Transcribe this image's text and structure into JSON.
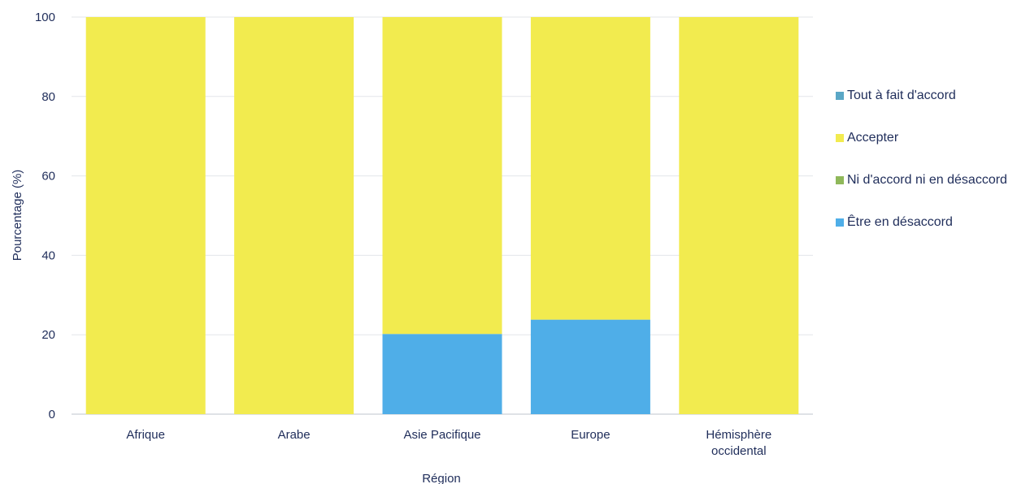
{
  "chart_data": {
    "type": "bar",
    "stacked": true,
    "title": "",
    "xlabel": "Région",
    "ylabel": "Pourcentage (%)",
    "ylim": [
      0,
      100
    ],
    "yticks": [
      0,
      20,
      40,
      60,
      80,
      100
    ],
    "grid": true,
    "legend_position": "right",
    "categories": [
      [
        "Afrique"
      ],
      [
        "Arabe"
      ],
      [
        "Asie Pacifique"
      ],
      [
        "Europe"
      ],
      [
        "Hémisphère",
        "occidental"
      ]
    ],
    "series": [
      {
        "name": "Être en désaccord",
        "color": "#4faee8",
        "values": [
          0,
          0,
          20.2,
          23.8,
          0
        ]
      },
      {
        "name": "Ni d'accord ni en désaccord",
        "color": "#8fb85a",
        "values": [
          0,
          0,
          0,
          0,
          0
        ]
      },
      {
        "name": "Accepter",
        "color": "#f2eb4f",
        "values": [
          100,
          100,
          79.8,
          76.2,
          100
        ]
      },
      {
        "name": "Tout à fait d'accord",
        "color": "#5aa7c6",
        "values": [
          0,
          0,
          0,
          0,
          0
        ]
      }
    ],
    "legend_order": [
      "Tout à fait d'accord",
      "Accepter",
      "Ni d'accord ni en désaccord",
      "Être en désaccord"
    ]
  }
}
